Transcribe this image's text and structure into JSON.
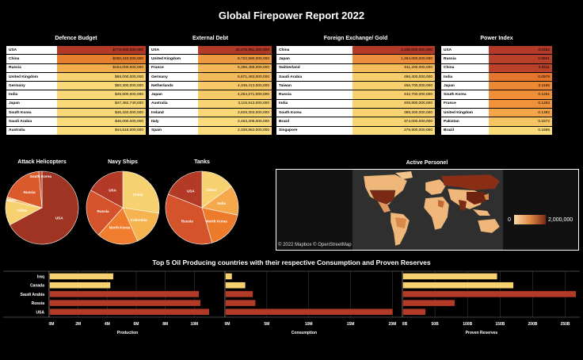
{
  "title": "Global Firepower Report 2022",
  "tables": [
    {
      "title": "Defence Budget",
      "rows": [
        {
          "country": "USA",
          "value": "$770,000,000,000",
          "color": "#b23a26"
        },
        {
          "country": "China",
          "value": "$250,240,000,000",
          "color": "#e6802e"
        },
        {
          "country": "Russia",
          "value": "$154,000,000,000",
          "color": "#f1ad4c"
        },
        {
          "country": "United Kingdom",
          "value": "$68,000,000,000",
          "color": "#f7d170"
        },
        {
          "country": "Germany",
          "value": "$50,300,000,000",
          "color": "#f9d877"
        },
        {
          "country": "India",
          "value": "$49,600,000,000",
          "color": "#f9d877"
        },
        {
          "country": "Japan",
          "value": "$47,482,740,000",
          "color": "#f9d877"
        },
        {
          "country": "South Korea",
          "value": "$46,320,000,000",
          "color": "#f9d877"
        },
        {
          "country": "Saudi Arabia",
          "value": "$46,000,000,000",
          "color": "#fadc7b"
        },
        {
          "country": "Australia",
          "value": "$44,618,000,000",
          "color": "#fadc7b"
        }
      ]
    },
    {
      "title": "External Debt",
      "rows": [
        {
          "country": "USA",
          "value": "20,275,951,000,000",
          "color": "#b23a26"
        },
        {
          "country": "United Kingdom",
          "value": "8,722,590,000,000",
          "color": "#ee9a42"
        },
        {
          "country": "France",
          "value": "6,356,459,000,000",
          "color": "#f3b757"
        },
        {
          "country": "Germany",
          "value": "5,671,463,000,000",
          "color": "#f4ba5a"
        },
        {
          "country": "Netherlands",
          "value": "4,345,413,000,000",
          "color": "#f7c967"
        },
        {
          "country": "Japan",
          "value": "4,254,271,000,000",
          "color": "#f7c967"
        },
        {
          "country": "Australia",
          "value": "3,115,913,000,000",
          "color": "#f9d473"
        },
        {
          "country": "Ireland",
          "value": "2,829,303,000,000",
          "color": "#fad878"
        },
        {
          "country": "Italy",
          "value": "2,463,208,000,000",
          "color": "#fbdb7b"
        },
        {
          "country": "Spain",
          "value": "2,338,853,000,000",
          "color": "#fbdc7d"
        }
      ]
    },
    {
      "title": "Foreign Exchange/ Gold",
      "rows": [
        {
          "country": "China",
          "value": "3,236,000,000,000",
          "color": "#b23a26"
        },
        {
          "country": "Japan",
          "value": "1,364,000,000,000",
          "color": "#ee8e3c"
        },
        {
          "country": "Switzerland",
          "value": "811,200,000,000",
          "color": "#f5bd5b"
        },
        {
          "country": "Saudi Arabia",
          "value": "496,400,000,000",
          "color": "#f8cd6b"
        },
        {
          "country": "Taiwan",
          "value": "456,700,000,000",
          "color": "#f8cf6d"
        },
        {
          "country": "Russia",
          "value": "432,700,000,000",
          "color": "#f8d06e"
        },
        {
          "country": "India",
          "value": "409,800,000,000",
          "color": "#f9d270"
        },
        {
          "country": "South Korea",
          "value": "389,200,000,000",
          "color": "#f9d371"
        },
        {
          "country": "Brazil",
          "value": "374,000,000,000",
          "color": "#f9d472"
        },
        {
          "country": "Singapore",
          "value": "279,900,000,000",
          "color": "#fadb7a"
        }
      ]
    },
    {
      "title": "Power Index",
      "rows": [
        {
          "country": "USA",
          "value": "0.0453",
          "color": "#b23a26"
        },
        {
          "country": "Russia",
          "value": "0.0501",
          "color": "#b9402a"
        },
        {
          "country": "China",
          "value": "0.0511",
          "color": "#bb422a"
        },
        {
          "country": "India",
          "value": "0.0979",
          "color": "#e4752c"
        },
        {
          "country": "Japan",
          "value": "0.1195",
          "color": "#ec8834"
        },
        {
          "country": "South Korea",
          "value": "0.1261",
          "color": "#ee8f38"
        },
        {
          "country": "France",
          "value": "0.1283",
          "color": "#ef923a"
        },
        {
          "country": "United Kingdom",
          "value": "0.1382",
          "color": "#f3a547"
        },
        {
          "country": "Pakistan",
          "value": "0.1572",
          "color": "#f7c463"
        },
        {
          "country": "Brazil",
          "value": "0.1695",
          "color": "#fadb7a"
        }
      ]
    }
  ],
  "pies": [
    {
      "title": "Attack Helicopters",
      "slices": [
        {
          "label": "USA",
          "value": 5463,
          "color": "#9e3421"
        },
        {
          "label": "China",
          "value": 902,
          "color": "#f7d170"
        },
        {
          "label": "Japan",
          "value": 119,
          "color": "#f4b860"
        },
        {
          "label": "Russia",
          "value": 1531,
          "color": "#db5a2b"
        },
        {
          "label": "South Korea",
          "value": 112,
          "color": "#c84a2a"
        }
      ]
    },
    {
      "title": "Navy Ships",
      "slices": [
        {
          "label": "China",
          "value": 777,
          "color": "#f7d170"
        },
        {
          "label": "Colombia",
          "value": 453,
          "color": "#f5b450"
        },
        {
          "label": "North Korea",
          "value": 519,
          "color": "#ef7d2d"
        },
        {
          "label": "Russia",
          "value": 605,
          "color": "#d4532a"
        },
        {
          "label": "USA",
          "value": 484,
          "color": "#b23a26"
        }
      ]
    },
    {
      "title": "Tanks",
      "slices": [
        {
          "label": "China",
          "value": 5250,
          "color": "#f7d170"
        },
        {
          "label": "India",
          "value": 4614,
          "color": "#f5a94c"
        },
        {
          "label": "North Korea",
          "value": 6045,
          "color": "#ed7b2c"
        },
        {
          "label": "Russia",
          "value": 12420,
          "color": "#d4532a"
        },
        {
          "label": "USA",
          "value": 6612,
          "color": "#b23a26"
        }
      ]
    }
  ],
  "map": {
    "title": "Active Personel",
    "attribution": "© 2022 Mapbox  © OpenStreetMap",
    "legend_min": "0",
    "legend_max": "2,000,000"
  },
  "bars": {
    "title": "Top 5 Oil Producing countries with their respective Consumption  and Proven Reserves",
    "countries": [
      "Iraq",
      "Canada",
      "Saudi Arabia",
      "Russia",
      "USA"
    ],
    "colors": [
      "#f7d170",
      "#f7d170",
      "#b23a26",
      "#b23a26",
      "#b23a26"
    ],
    "panels": [
      {
        "label": "Production",
        "max": 12000000,
        "ticks": [
          "0M",
          "2M",
          "4M",
          "6M",
          "8M",
          "10M"
        ],
        "tick_values": [
          0,
          2000000,
          4000000,
          6000000,
          8000000,
          10000000
        ],
        "values": [
          4400000,
          4200000,
          10300000,
          10400000,
          11000000
        ]
      },
      {
        "label": "Consumption",
        "max": 21000000,
        "ticks": [
          "0M",
          "5M",
          "10M",
          "15M",
          "20M"
        ],
        "tick_values": [
          0,
          5000000,
          10000000,
          15000000,
          20000000
        ],
        "values": [
          800000,
          2400000,
          3300000,
          3600000,
          20000000
        ]
      },
      {
        "label": "Proven Reserves",
        "max": 270000000000,
        "ticks": [
          "0B",
          "50B",
          "100B",
          "150B",
          "200B",
          "250B"
        ],
        "tick_values": [
          0,
          50000000000,
          100000000000,
          150000000000,
          200000000000,
          250000000000
        ],
        "values": [
          145000000000,
          170000000000,
          266000000000,
          80000000000,
          35000000000
        ]
      }
    ]
  },
  "chart_data": [
    {
      "type": "pie",
      "title": "Attack Helicopters",
      "categories": [
        "USA",
        "China",
        "Japan",
        "Russia",
        "South Korea"
      ],
      "values": [
        5463,
        902,
        119,
        1531,
        112
      ]
    },
    {
      "type": "pie",
      "title": "Navy Ships",
      "categories": [
        "China",
        "Colombia",
        "North Korea",
        "Russia",
        "USA"
      ],
      "values": [
        777,
        453,
        519,
        605,
        484
      ]
    },
    {
      "type": "pie",
      "title": "Tanks",
      "categories": [
        "China",
        "India",
        "North Korea",
        "Russia",
        "USA"
      ],
      "values": [
        5250,
        4614,
        6045,
        12420,
        6612
      ]
    },
    {
      "type": "bar",
      "title": "Top 5 Oil Producing countries with their respective Consumption  and Proven Reserves",
      "categories": [
        "Iraq",
        "Canada",
        "Saudi Arabia",
        "Russia",
        "USA"
      ],
      "series": [
        {
          "name": "Production",
          "values": [
            4400000,
            4200000,
            10300000,
            10400000,
            11000000
          ]
        },
        {
          "name": "Consumption",
          "values": [
            800000,
            2400000,
            3300000,
            3600000,
            20000000
          ]
        },
        {
          "name": "Proven Reserves",
          "values": [
            145000000000,
            170000000000,
            266000000000,
            80000000000,
            35000000000
          ]
        }
      ]
    }
  ]
}
